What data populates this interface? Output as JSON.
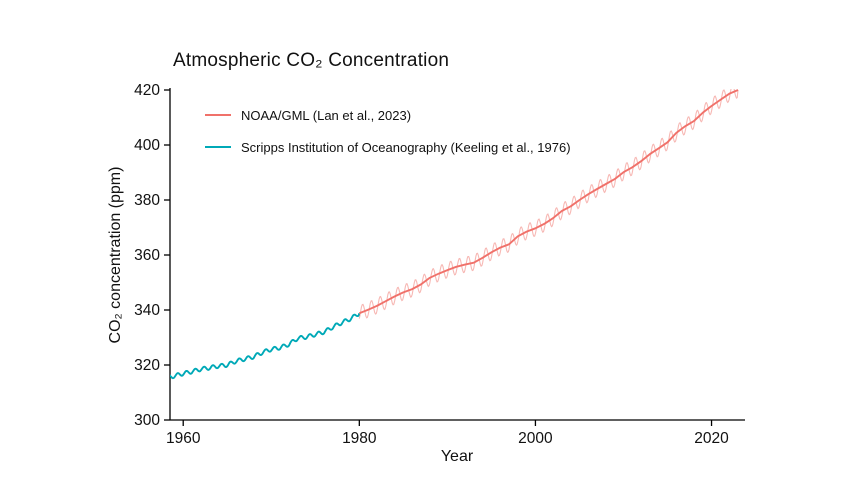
{
  "chart_data": {
    "type": "line",
    "title": "Atmospheric CO₂ Concentration",
    "xlabel": "Year",
    "ylabel": "CO₂ concentration (ppm)",
    "xlim": [
      1958.5,
      2023.8
    ],
    "ylim": [
      300,
      420
    ],
    "xticks": [
      1960,
      1980,
      2000,
      2020
    ],
    "yticks": [
      300,
      320,
      340,
      360,
      380,
      400,
      420
    ],
    "grid": false,
    "legend_position": "upper-left-inside",
    "axis_color": "#000000",
    "series": [
      {
        "name": "NOAA/GML (Lan et al., 2023)",
        "color": "#f0716a",
        "start_year": 1980,
        "end_year": 2023,
        "seasonal_amplitude": 2.8,
        "show_monthly": true,
        "annual_values": [
          338.8,
          340.1,
          341.5,
          343.2,
          344.9,
          346.4,
          347.6,
          349.3,
          351.7,
          353.2,
          354.5,
          355.7,
          356.5,
          357.2,
          359.0,
          361.0,
          362.7,
          363.9,
          366.8,
          368.5,
          369.7,
          371.3,
          373.4,
          376.0,
          377.7,
          380.0,
          382.1,
          384.0,
          385.8,
          387.6,
          390.1,
          391.9,
          394.1,
          396.7,
          398.8,
          401.0,
          404.4,
          406.8,
          408.7,
          411.7,
          414.2,
          416.4,
          418.6,
          420.0
        ]
      },
      {
        "name": "Scripps Institution of Oceanography (Keeling et al., 1976)",
        "color": "#00a9b7",
        "start_year": 1958,
        "end_year": 1980,
        "seasonal_amplitude": 0.7,
        "show_monthly": false,
        "annual_values": [
          315.3,
          316.0,
          316.9,
          317.6,
          318.5,
          319.0,
          319.6,
          320.0,
          321.4,
          322.2,
          323.0,
          324.6,
          325.7,
          326.3,
          327.5,
          329.7,
          330.2,
          331.1,
          332.0,
          333.8,
          335.4,
          336.8,
          338.8
        ]
      }
    ]
  }
}
